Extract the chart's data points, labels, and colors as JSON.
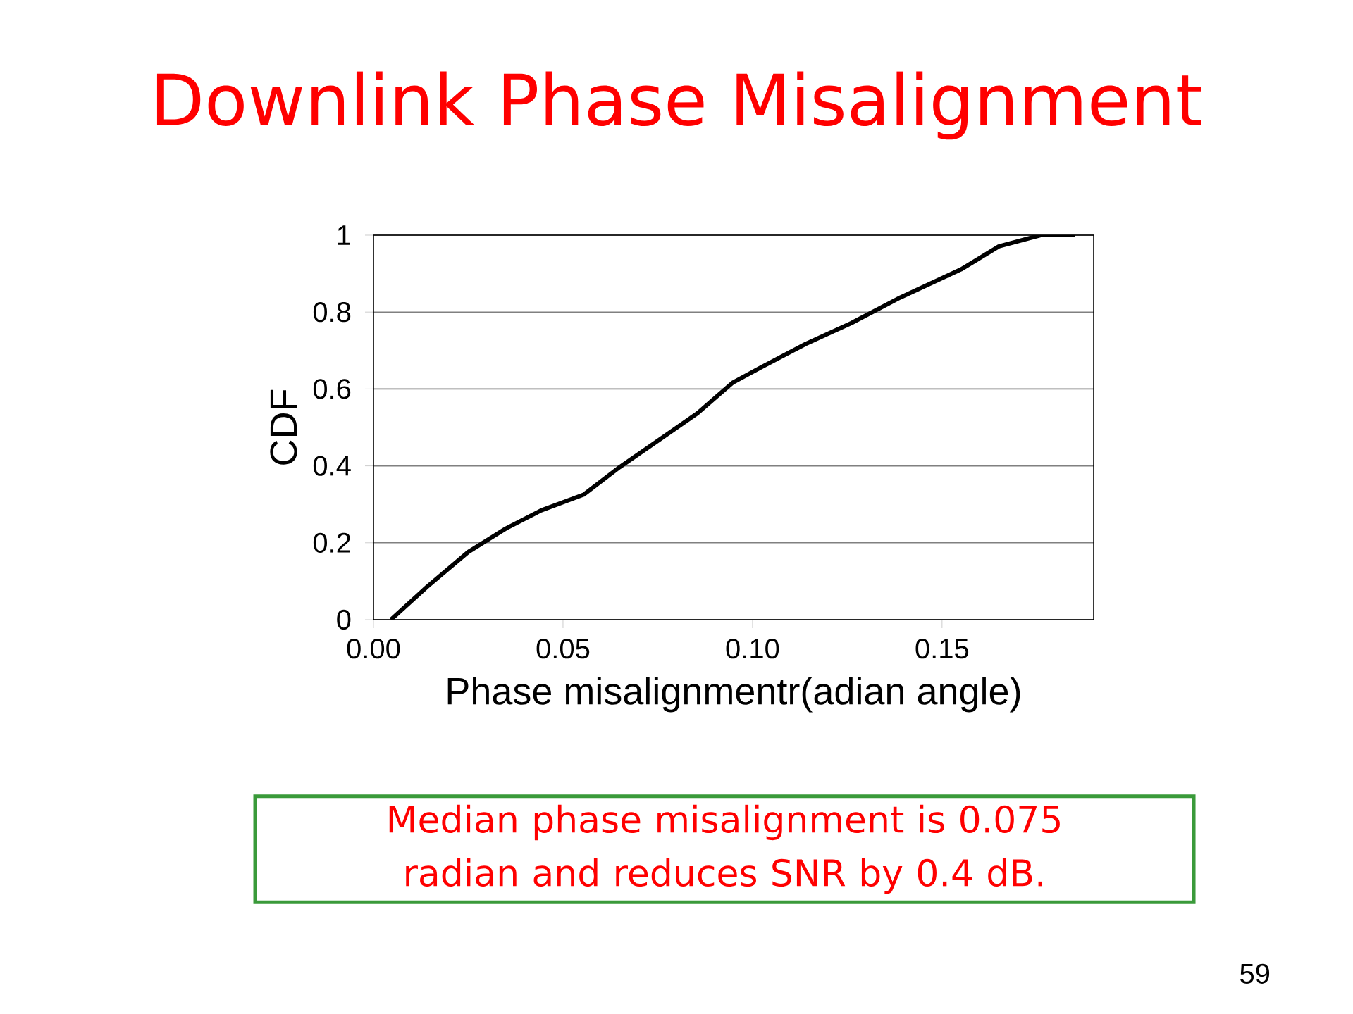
{
  "chart_data": {
    "type": "line",
    "title": "Downlink Phase Misalignment",
    "xlabel": "Phase misalignmentr(adian angle)",
    "ylabel": "CDF",
    "annotations": [
      "Median phase misalignment is 0.075 radian and reduces SNR by 0.4 dB.",
      "59"
    ],
    "x": [
      0.0046,
      0.0141,
      0.025,
      0.0349,
      0.0442,
      0.0554,
      0.065,
      0.0754,
      0.0855,
      0.0947,
      0.102,
      0.114,
      0.126,
      0.139,
      0.155,
      0.165,
      0.176,
      0.185
    ],
    "series": [
      {
        "color": "#000000",
        "values": [
          0,
          0.085,
          0.176,
          0.237,
          0.284,
          0.325,
          0.397,
          0.468,
          0.537,
          0.616,
          0.655,
          0.717,
          0.771,
          0.838,
          0.911,
          0.971,
          1.0,
          1.0
        ]
      }
    ],
    "xlim": [
      0,
      0.19
    ],
    "ylim": [
      0,
      1
    ],
    "xticks": [
      {
        "value": 0,
        "label": "0.00"
      },
      {
        "value": 0.05,
        "label": "0.05"
      },
      {
        "value": 0.1,
        "label": "0.10"
      },
      {
        "value": 0.15,
        "label": "0.15"
      }
    ],
    "yticks": [
      0,
      0.2,
      0.4,
      0.6,
      0.8,
      1
    ],
    "grid": "y",
    "marker": "none",
    "line_style": "solid"
  }
}
